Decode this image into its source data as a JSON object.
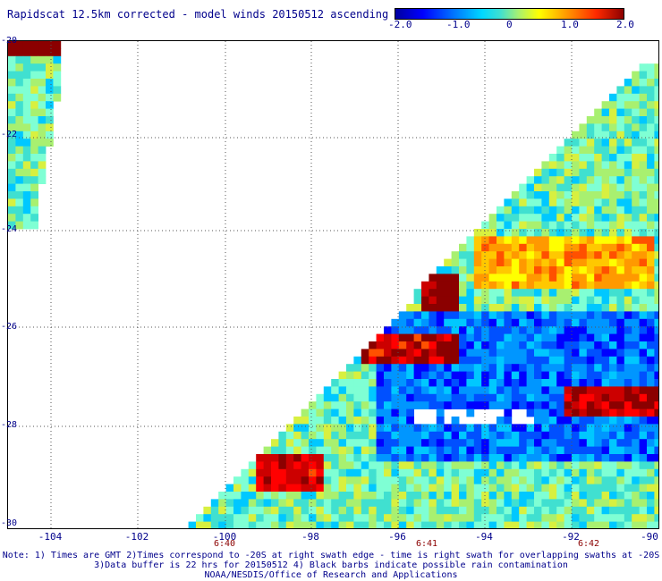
{
  "title": "Rapidscat 12.5km corrected - model winds 20150512 ascending",
  "colorbar": {
    "ticks": [
      "-2.0",
      "-1.0",
      "0",
      "1.0",
      "2.0"
    ],
    "range": [
      -2.0,
      2.0
    ]
  },
  "map": {
    "lon_range": [
      -105,
      -90
    ],
    "lat_range": [
      -30,
      -20
    ],
    "lon_ticks": [
      "-104",
      "-102",
      "-100",
      "-98",
      "-96",
      "-94",
      "-92",
      "-90"
    ],
    "lat_ticks": [
      "-20",
      "-22",
      "-24",
      "-26",
      "-28",
      "-30"
    ],
    "time_marks": [
      "6:40",
      "6:41",
      "6:42"
    ],
    "grid": "dotted"
  },
  "notes": {
    "line1": "Note: 1) Times are GMT 2)Times correspond to -20S at right swath edge - time is right swath for overlapping swaths at -20S",
    "line2": "3)Data buffer is 22 hrs for 20150512 4) Black barbs indicate possible rain contamination",
    "line3": "NOAA/NESDIS/Office of Research and Applications"
  }
}
